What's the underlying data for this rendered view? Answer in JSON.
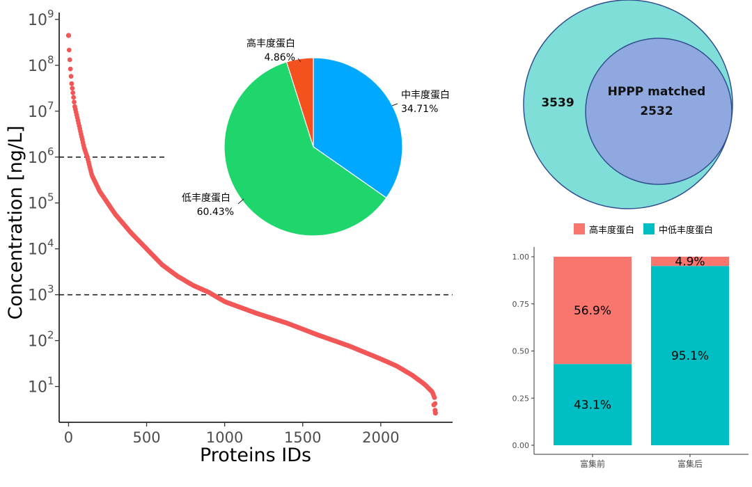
{
  "chart_data": [
    {
      "type": "scatter",
      "name": "protein-concentration-rank",
      "xlabel": "Proteins IDs",
      "ylabel": "Concentration [ng/L]",
      "x_ticks": [
        "0",
        "500",
        "1000",
        "1500",
        "2000"
      ],
      "x_tick_values": [
        0,
        500,
        1000,
        1500,
        2000
      ],
      "xlim": [
        -60,
        2460
      ],
      "y_scale": "log10",
      "y_tick_base": "10",
      "y_tick_exponents": [
        "1",
        "2",
        "3",
        "4",
        "5",
        "6",
        "7",
        "8",
        "9"
      ],
      "ylim_log10": [
        0.22,
        9.15
      ],
      "color": "#f25757",
      "reference_lines": [
        {
          "y_log10": 6,
          "x_end": 620,
          "style": "dashed"
        },
        {
          "y_log10": 3,
          "x_end": 2460,
          "style": "dashed"
        }
      ],
      "curve_knots": [
        [
          0,
          8.65
        ],
        [
          1,
          8.45
        ],
        [
          2,
          8.4
        ],
        [
          5,
          8.3
        ],
        [
          10,
          8.0
        ],
        [
          20,
          7.6
        ],
        [
          40,
          7.1
        ],
        [
          60,
          6.8
        ],
        [
          80,
          6.5
        ],
        [
          100,
          6.2
        ],
        [
          120,
          6.0
        ],
        [
          150,
          5.6
        ],
        [
          200,
          5.25
        ],
        [
          250,
          5.0
        ],
        [
          300,
          4.75
        ],
        [
          400,
          4.35
        ],
        [
          500,
          4.0
        ],
        [
          600,
          3.65
        ],
        [
          700,
          3.4
        ],
        [
          800,
          3.2
        ],
        [
          900,
          3.05
        ],
        [
          1000,
          2.85
        ],
        [
          1200,
          2.6
        ],
        [
          1400,
          2.38
        ],
        [
          1600,
          2.12
        ],
        [
          1800,
          1.88
        ],
        [
          2000,
          1.6
        ],
        [
          2100,
          1.45
        ],
        [
          2200,
          1.25
        ],
        [
          2280,
          1.05
        ],
        [
          2330,
          0.88
        ],
        [
          2345,
          0.75
        ],
        [
          2350,
          0.55
        ]
      ],
      "n_points": 2350
    },
    {
      "type": "pie",
      "name": "abundance-share",
      "slices": [
        {
          "label": "中丰度蛋白",
          "value": 34.71,
          "value_label": "34.71%",
          "color": "#00a9ff"
        },
        {
          "label": "低丰度蛋白",
          "value": 60.43,
          "value_label": "60.43%",
          "color": "#1ed66b"
        },
        {
          "label": "高丰度蛋白",
          "value": 4.86,
          "value_label": "4.86%",
          "color": "#f4511e"
        }
      ],
      "start": "12 o'clock, clockwise"
    },
    {
      "type": "venn",
      "name": "hppp-overlap",
      "sets": [
        {
          "label": "",
          "value": "3539",
          "color": "#7fded8"
        },
        {
          "label": "HPPP matched",
          "value": "2532",
          "color": "#8fa9e0"
        }
      ]
    },
    {
      "type": "bar",
      "name": "enrichment-stacked",
      "stacked": true,
      "categories": [
        "富集前",
        "富集后"
      ],
      "series": [
        {
          "name": "中低丰度蛋白",
          "values": [
            0.431,
            0.951
          ],
          "labels": [
            "43.1%",
            "95.1%"
          ],
          "color": "#00bfc4"
        },
        {
          "name": "高丰度蛋白",
          "values": [
            0.569,
            0.049
          ],
          "labels": [
            "56.9%",
            "4.9%"
          ],
          "color": "#f8766d"
        }
      ],
      "legend_order": [
        "高丰度蛋白",
        "中低丰度蛋白"
      ],
      "legend_position": "top",
      "ylim": [
        0,
        1
      ],
      "y_ticks": [
        "0.00",
        "0.25",
        "0.50",
        "0.75",
        "1.00"
      ],
      "y_tick_values": [
        0,
        0.25,
        0.5,
        0.75,
        1
      ]
    }
  ]
}
